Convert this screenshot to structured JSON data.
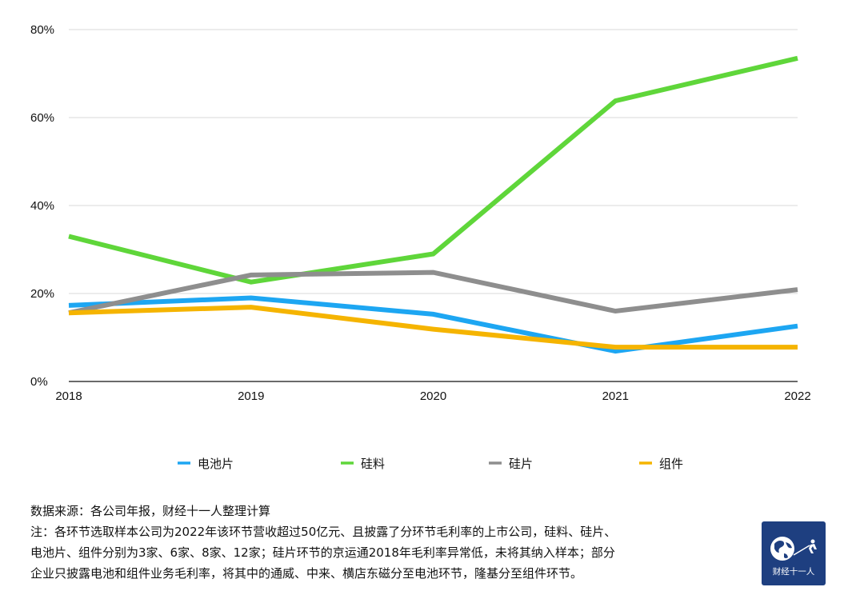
{
  "chart_data": {
    "type": "line",
    "categories": [
      "2018",
      "2019",
      "2020",
      "2021",
      "2022"
    ],
    "ylim": [
      0,
      80
    ],
    "yticks": [
      "0%",
      "20%",
      "40%",
      "60%",
      "80%"
    ],
    "ytick_values": [
      0,
      20,
      40,
      60,
      80
    ],
    "grid": true,
    "legend_position": "bottom",
    "series": [
      {
        "name": "电池片",
        "color": "#1da6f2",
        "values": [
          17.3,
          19.0,
          15.3,
          6.9,
          12.6
        ]
      },
      {
        "name": "硅料",
        "color": "#5fd63a",
        "values": [
          33.0,
          22.6,
          29.0,
          63.8,
          73.5
        ]
      },
      {
        "name": "硅片",
        "color": "#8e8e8e",
        "values": [
          15.6,
          24.2,
          24.8,
          16.0,
          20.9
        ]
      },
      {
        "name": "组件",
        "color": "#f5b400",
        "values": [
          15.6,
          16.9,
          11.9,
          7.8,
          7.8
        ]
      }
    ]
  },
  "notes": {
    "source": "数据来源：各公司年报，财经十一人整理计算",
    "line1": "注：各环节选取样本公司为2022年该环节营收超过50亿元、且披露了分环节毛利率的上市公司，硅料、硅片、",
    "line2": "电池片、组件分别为3家、6家、8家、12家；硅片环节的京运通2018年毛利率异常低，未将其纳入样本；部分",
    "line3": "企业只披露电池和组件业务毛利率，将其中的通威、中来、横店东磁分至电池环节，隆基分至组件环节。"
  },
  "logo": {
    "text": "财经十一人",
    "background": "#1e3f80"
  }
}
